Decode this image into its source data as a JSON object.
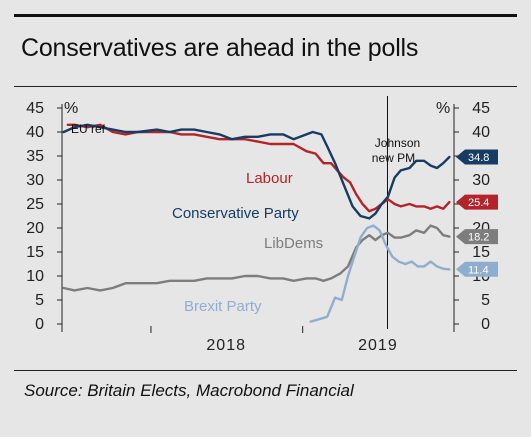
{
  "title": "Conservatives are ahead in the polls",
  "source": "Source: Britain Elects, Macrobond Financial",
  "chart_data": {
    "type": "line",
    "unit_left": "%",
    "unit_right": "%",
    "ylim": [
      0,
      45
    ],
    "yticks": [
      0,
      5,
      10,
      15,
      20,
      25,
      30,
      35,
      40,
      45
    ],
    "xlim": [
      "2017-06-01",
      "2019-12-31"
    ],
    "xtick_labels": [
      {
        "date": "2018-07-01",
        "label": "2018"
      },
      {
        "date": "2019-07-01",
        "label": "2019"
      }
    ],
    "grid": false,
    "legend": "inline labels",
    "annotations": [
      {
        "date": "2019-07-24",
        "text_lines": [
          "Johnson",
          "new PM"
        ]
      },
      {
        "text": "EU ref"
      }
    ],
    "series": [
      {
        "name": "Conservative Party",
        "color": "#163c63",
        "end_label": "34.8",
        "points": [
          [
            "2017-06-05",
            40
          ],
          [
            "2017-07-01",
            41
          ],
          [
            "2017-08-01",
            41.5
          ],
          [
            "2017-09-01",
            41
          ],
          [
            "2017-10-01",
            40.5
          ],
          [
            "2017-11-01",
            40
          ],
          [
            "2017-12-01",
            40
          ],
          [
            "2018-01-15",
            40.5
          ],
          [
            "2018-02-15",
            40
          ],
          [
            "2018-03-15",
            40.5
          ],
          [
            "2018-04-15",
            40.5
          ],
          [
            "2018-05-15",
            40
          ],
          [
            "2018-06-15",
            39.5
          ],
          [
            "2018-07-15",
            38.5
          ],
          [
            "2018-08-15",
            39
          ],
          [
            "2018-09-15",
            39
          ],
          [
            "2018-10-15",
            39.5
          ],
          [
            "2018-11-15",
            39.5
          ],
          [
            "2018-12-10",
            38.5
          ],
          [
            "2019-01-10",
            39.5
          ],
          [
            "2019-01-25",
            40
          ],
          [
            "2019-02-15",
            39.5
          ],
          [
            "2019-03-01",
            37
          ],
          [
            "2019-03-20",
            33.5
          ],
          [
            "2019-04-10",
            29
          ],
          [
            "2019-05-01",
            24.5
          ],
          [
            "2019-05-20",
            22.5
          ],
          [
            "2019-06-10",
            22
          ],
          [
            "2019-06-25",
            23
          ],
          [
            "2019-07-10",
            25
          ],
          [
            "2019-07-25",
            26.5
          ],
          [
            "2019-08-10",
            30.5
          ],
          [
            "2019-08-25",
            32
          ],
          [
            "2019-09-15",
            32.5
          ],
          [
            "2019-10-01",
            34
          ],
          [
            "2019-10-20",
            34
          ],
          [
            "2019-11-05",
            33
          ],
          [
            "2019-11-20",
            32.5
          ],
          [
            "2019-12-05",
            33.5
          ],
          [
            "2019-12-20",
            34.8
          ]
        ]
      },
      {
        "name": "Labour",
        "color": "#b4232a",
        "end_label": "25.4",
        "points": [
          [
            "2017-06-15",
            41.5
          ],
          [
            "2017-07-01",
            41.5
          ],
          [
            "2017-08-01",
            41
          ],
          [
            "2017-09-01",
            41.5
          ],
          [
            "2017-10-01",
            40
          ],
          [
            "2017-11-01",
            39.5
          ],
          [
            "2017-12-01",
            40
          ],
          [
            "2018-01-15",
            40
          ],
          [
            "2018-02-15",
            40
          ],
          [
            "2018-03-15",
            39.5
          ],
          [
            "2018-04-15",
            39.5
          ],
          [
            "2018-05-15",
            39
          ],
          [
            "2018-06-15",
            38.5
          ],
          [
            "2018-07-15",
            38.5
          ],
          [
            "2018-08-15",
            38.5
          ],
          [
            "2018-09-15",
            38
          ],
          [
            "2018-10-15",
            37.5
          ],
          [
            "2018-11-15",
            37.5
          ],
          [
            "2018-12-10",
            37.5
          ],
          [
            "2019-01-10",
            36
          ],
          [
            "2019-02-01",
            35.5
          ],
          [
            "2019-02-20",
            33.5
          ],
          [
            "2019-03-10",
            33.5
          ],
          [
            "2019-03-25",
            32
          ],
          [
            "2019-04-10",
            30.5
          ],
          [
            "2019-04-25",
            29.5
          ],
          [
            "2019-05-10",
            27
          ],
          [
            "2019-05-25",
            25
          ],
          [
            "2019-06-10",
            23.5
          ],
          [
            "2019-06-25",
            24
          ],
          [
            "2019-07-10",
            25
          ],
          [
            "2019-07-25",
            26
          ],
          [
            "2019-08-10",
            25
          ],
          [
            "2019-08-25",
            24.5
          ],
          [
            "2019-09-15",
            25
          ],
          [
            "2019-10-01",
            24.5
          ],
          [
            "2019-10-20",
            24.5
          ],
          [
            "2019-11-05",
            24
          ],
          [
            "2019-11-20",
            24.5
          ],
          [
            "2019-12-05",
            24
          ],
          [
            "2019-12-20",
            25.4
          ]
        ]
      },
      {
        "name": "LibDems",
        "color": "#7d7d7d",
        "end_label": "18.2",
        "points": [
          [
            "2017-06-05",
            7.5
          ],
          [
            "2017-07-01",
            7
          ],
          [
            "2017-08-01",
            7.5
          ],
          [
            "2017-09-01",
            7
          ],
          [
            "2017-10-01",
            7.5
          ],
          [
            "2017-11-01",
            8.5
          ],
          [
            "2017-12-01",
            8.5
          ],
          [
            "2018-01-15",
            8.5
          ],
          [
            "2018-02-15",
            9
          ],
          [
            "2018-03-15",
            9
          ],
          [
            "2018-04-15",
            9
          ],
          [
            "2018-05-15",
            9.5
          ],
          [
            "2018-06-15",
            9.5
          ],
          [
            "2018-07-15",
            9.5
          ],
          [
            "2018-08-15",
            10
          ],
          [
            "2018-09-15",
            10
          ],
          [
            "2018-10-15",
            9.5
          ],
          [
            "2018-11-15",
            9.5
          ],
          [
            "2018-12-10",
            9
          ],
          [
            "2019-01-10",
            9.5
          ],
          [
            "2019-02-01",
            9.5
          ],
          [
            "2019-02-20",
            9
          ],
          [
            "2019-03-10",
            9.5
          ],
          [
            "2019-04-01",
            10.5
          ],
          [
            "2019-04-20",
            12
          ],
          [
            "2019-05-10",
            16
          ],
          [
            "2019-05-25",
            17.5
          ],
          [
            "2019-06-10",
            18.5
          ],
          [
            "2019-06-25",
            17.5
          ],
          [
            "2019-07-10",
            18.5
          ],
          [
            "2019-07-25",
            19
          ],
          [
            "2019-08-10",
            18
          ],
          [
            "2019-08-25",
            18
          ],
          [
            "2019-09-15",
            18.5
          ],
          [
            "2019-10-01",
            19.5
          ],
          [
            "2019-10-20",
            19
          ],
          [
            "2019-11-05",
            20.5
          ],
          [
            "2019-11-20",
            20
          ],
          [
            "2019-12-05",
            18.5
          ],
          [
            "2019-12-20",
            18.2
          ]
        ]
      },
      {
        "name": "Brexit Party",
        "color": "#8faecf",
        "end_label": "11.4",
        "points": [
          [
            "2019-01-20",
            0.5
          ],
          [
            "2019-02-10",
            1
          ],
          [
            "2019-03-01",
            1.5
          ],
          [
            "2019-03-20",
            5.5
          ],
          [
            "2019-04-05",
            5
          ],
          [
            "2019-04-20",
            10
          ],
          [
            "2019-05-05",
            14
          ],
          [
            "2019-05-20",
            18
          ],
          [
            "2019-06-05",
            20
          ],
          [
            "2019-06-20",
            20.5
          ],
          [
            "2019-07-05",
            19.5
          ],
          [
            "2019-07-20",
            16.5
          ],
          [
            "2019-08-05",
            14
          ],
          [
            "2019-08-20",
            13
          ],
          [
            "2019-09-05",
            12.5
          ],
          [
            "2019-09-20",
            13
          ],
          [
            "2019-10-05",
            12
          ],
          [
            "2019-10-20",
            12
          ],
          [
            "2019-11-05",
            13
          ],
          [
            "2019-11-20",
            12
          ],
          [
            "2019-12-05",
            11.5
          ],
          [
            "2019-12-20",
            11.4
          ]
        ]
      }
    ]
  }
}
